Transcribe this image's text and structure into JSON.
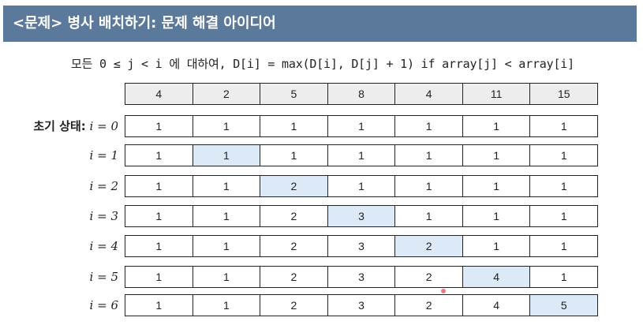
{
  "title": "<문제> 병사 배치하기: 문제 해결 아이디어",
  "formula": "모든 0 ≤ j < i 에 대하여, D[i] = max(D[i], D[j] + 1) if array[j] < array[i]",
  "header_values": [
    "4",
    "2",
    "5",
    "8",
    "4",
    "11",
    "15"
  ],
  "initial_label": {
    "prefix": "초기 상태:",
    "expr": "i = 0"
  },
  "rows": [
    {
      "label": "i = 1",
      "values": [
        "1",
        "1",
        "1",
        "1",
        "1",
        "1",
        "1"
      ],
      "highlight": 1
    },
    {
      "label": "i = 2",
      "values": [
        "1",
        "1",
        "2",
        "1",
        "1",
        "1",
        "1"
      ],
      "highlight": 2
    },
    {
      "label": "i = 3",
      "values": [
        "1",
        "1",
        "2",
        "3",
        "1",
        "1",
        "1"
      ],
      "highlight": 3
    },
    {
      "label": "i = 4",
      "values": [
        "1",
        "1",
        "2",
        "3",
        "2",
        "1",
        "1"
      ],
      "highlight": 4
    },
    {
      "label": "i = 5",
      "values": [
        "1",
        "1",
        "2",
        "3",
        "2",
        "4",
        "1"
      ],
      "highlight": 5
    },
    {
      "label": "i = 6",
      "values": [
        "1",
        "1",
        "2",
        "3",
        "2",
        "4",
        "5"
      ],
      "highlight": 6
    }
  ],
  "initial_values": [
    "1",
    "1",
    "1",
    "1",
    "1",
    "1",
    "1"
  ],
  "colors": {
    "title_bg": "#5b7a9b",
    "highlight": "#dce9f6",
    "header_bg": "#ededed"
  }
}
